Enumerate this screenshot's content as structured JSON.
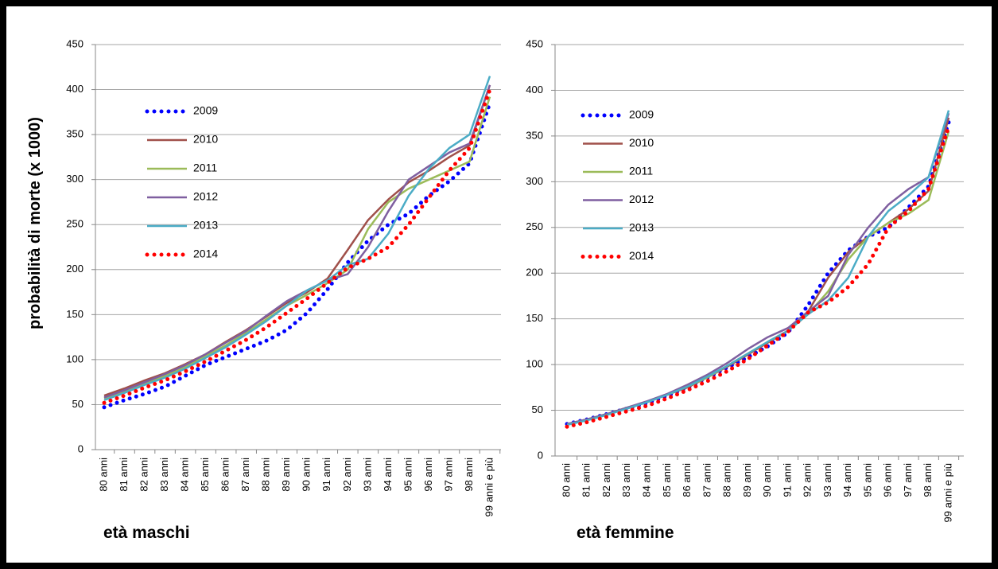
{
  "chart_data": [
    {
      "type": "line",
      "ylabel": "probabilità di morte (x 1000)",
      "xlabel": "età maschi",
      "categories": [
        "80 anni",
        "81 anni",
        "82 anni",
        "83 anni",
        "84 anni",
        "85 anni",
        "86 anni",
        "87 anni",
        "88 anni",
        "89 anni",
        "90 anni",
        "91 anni",
        "92 anni",
        "93 anni",
        "94 anni",
        "95 anni",
        "96 anni",
        "97 anni",
        "98 anni",
        "99 anni e più"
      ],
      "ylim": [
        0,
        450
      ],
      "yticks": [
        0,
        50,
        100,
        150,
        200,
        250,
        300,
        350,
        400,
        450
      ],
      "grid": true,
      "series": [
        {
          "name": "2009",
          "color": "#0000ff",
          "line_style": "dotted",
          "values": [
            47,
            55,
            62,
            70,
            82,
            94,
            103,
            112,
            121,
            133,
            152,
            178,
            208,
            232,
            250,
            262,
            282,
            298,
            318,
            385
          ]
        },
        {
          "name": "2010",
          "color": "#a0504a",
          "line_style": "solid",
          "values": [
            60,
            68,
            77,
            85,
            95,
            106,
            120,
            133,
            148,
            163,
            175,
            190,
            222,
            255,
            278,
            297,
            310,
            325,
            338,
            405
          ]
        },
        {
          "name": "2011",
          "color": "#9bbb59",
          "line_style": "solid",
          "values": [
            57,
            65,
            73,
            82,
            92,
            104,
            116,
            130,
            145,
            160,
            172,
            185,
            200,
            245,
            275,
            290,
            300,
            310,
            320,
            392
          ]
        },
        {
          "name": "2012",
          "color": "#7f5fa0",
          "line_style": "solid",
          "values": [
            58,
            66,
            75,
            84,
            94,
            106,
            119,
            132,
            149,
            165,
            177,
            188,
            195,
            225,
            265,
            300,
            315,
            330,
            340,
            405
          ]
        },
        {
          "name": "2013",
          "color": "#4bacc6",
          "line_style": "solid",
          "values": [
            55,
            63,
            72,
            80,
            90,
            102,
            114,
            128,
            143,
            160,
            177,
            188,
            205,
            212,
            240,
            282,
            312,
            335,
            350,
            415
          ]
        },
        {
          "name": "2014",
          "color": "#ff0000",
          "line_style": "dotted",
          "values": [
            52,
            60,
            69,
            77,
            87,
            98,
            110,
            122,
            136,
            152,
            168,
            185,
            202,
            212,
            225,
            250,
            280,
            310,
            335,
            400
          ]
        }
      ]
    },
    {
      "type": "line",
      "xlabel": "età femmine",
      "categories": [
        "80 anni",
        "81 anni",
        "82 anni",
        "83 anni",
        "84 anni",
        "85 anni",
        "86 anni",
        "87 anni",
        "88 anni",
        "89 anni",
        "90 anni",
        "91 anni",
        "92 anni",
        "93 anni",
        "94 anni",
        "95 anni",
        "96 anni",
        "97 anni",
        "98 anni",
        "99 anni e più"
      ],
      "ylim": [
        0,
        450
      ],
      "yticks": [
        0,
        50,
        100,
        150,
        200,
        250,
        300,
        350,
        400,
        450
      ],
      "grid": true,
      "series": [
        {
          "name": "2009",
          "color": "#0000ff",
          "line_style": "dotted",
          "values": [
            35,
            40,
            46,
            52,
            58,
            66,
            75,
            86,
            97,
            108,
            120,
            135,
            165,
            200,
            225,
            240,
            250,
            272,
            295,
            365
          ]
        },
        {
          "name": "2010",
          "color": "#a0504a",
          "line_style": "solid",
          "values": [
            35,
            40,
            46,
            52,
            59,
            67,
            75,
            86,
            98,
            111,
            124,
            137,
            158,
            195,
            223,
            240,
            255,
            270,
            290,
            370
          ]
        },
        {
          "name": "2011",
          "color": "#9bbb59",
          "line_style": "solid",
          "values": [
            35,
            40,
            46,
            53,
            59,
            67,
            76,
            86,
            99,
            112,
            125,
            137,
            155,
            180,
            215,
            240,
            255,
            265,
            280,
            355
          ]
        },
        {
          "name": "2012",
          "color": "#7f5fa0",
          "line_style": "solid",
          "values": [
            35,
            40,
            46,
            53,
            60,
            68,
            78,
            89,
            102,
            117,
            130,
            140,
            158,
            175,
            220,
            250,
            275,
            292,
            305,
            375
          ]
        },
        {
          "name": "2013",
          "color": "#4bacc6",
          "line_style": "solid",
          "values": [
            34,
            39,
            45,
            52,
            59,
            67,
            76,
            87,
            99,
            112,
            125,
            137,
            155,
            170,
            195,
            240,
            268,
            285,
            305,
            378
          ]
        },
        {
          "name": "2014",
          "color": "#ff0000",
          "line_style": "dotted",
          "values": [
            32,
            37,
            43,
            49,
            55,
            63,
            72,
            82,
            93,
            106,
            121,
            136,
            157,
            168,
            185,
            210,
            250,
            268,
            292,
            360
          ]
        }
      ]
    }
  ]
}
